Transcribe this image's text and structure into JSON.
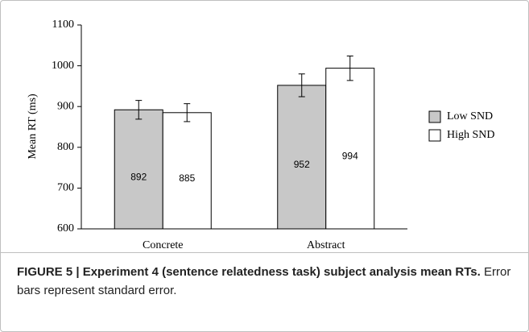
{
  "chart_data": {
    "type": "bar",
    "ylabel": "Mean RT (ms)",
    "categories": [
      "Concrete",
      "Abstract"
    ],
    "series": [
      {
        "name": "Low SND",
        "color": "#c8c8c8",
        "values": [
          892,
          952
        ],
        "errors": [
          23,
          28
        ]
      },
      {
        "name": "High SND",
        "color": "#ffffff",
        "values": [
          885,
          994
        ],
        "errors": [
          22,
          30
        ]
      }
    ],
    "ylim": [
      600,
      1100
    ],
    "yticks": [
      600,
      700,
      800,
      900,
      1000,
      1100
    ],
    "legend": "right"
  },
  "caption": {
    "label": "FIGURE 5 | Experiment 4 (sentence relatedness task) subject analysis mean RTs.",
    "text": "Error bars represent standard error."
  }
}
